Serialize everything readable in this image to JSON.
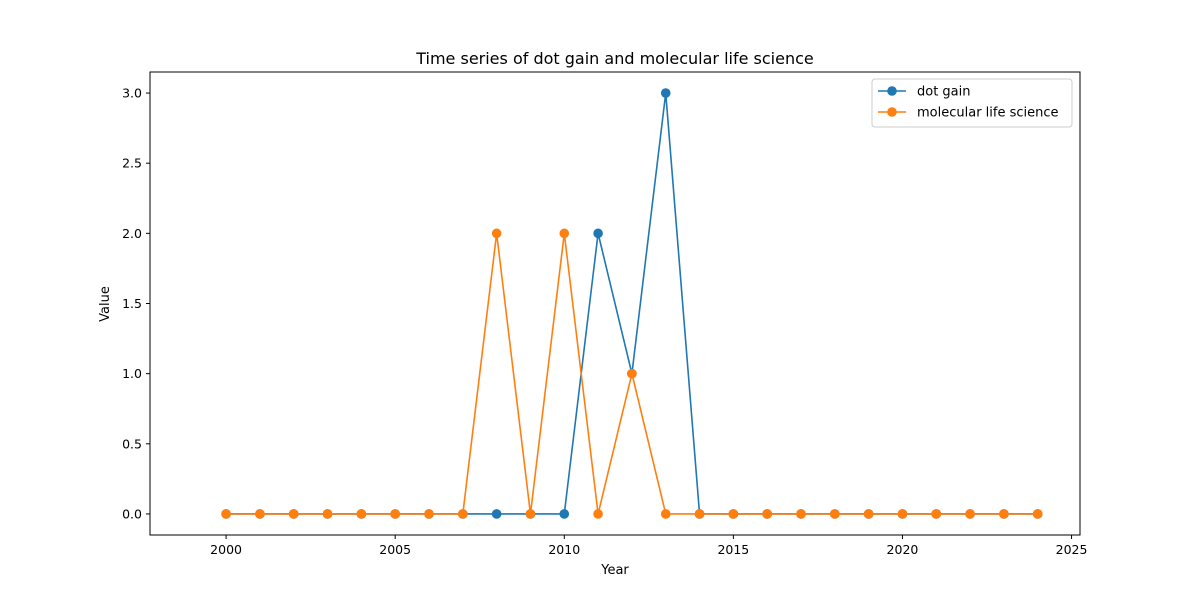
{
  "chart_data": {
    "type": "line",
    "title": "Time series of dot gain and molecular life science",
    "xlabel": "Year",
    "ylabel": "Value",
    "xlim": [
      1997.75,
      2025.25
    ],
    "ylim": [
      -0.15,
      3.15
    ],
    "xticks": [
      2000,
      2005,
      2010,
      2015,
      2020,
      2025
    ],
    "yticks": [
      0.0,
      0.5,
      1.0,
      1.5,
      2.0,
      2.5,
      3.0
    ],
    "xtick_labels": [
      "2000",
      "2005",
      "2010",
      "2015",
      "2020",
      "2025"
    ],
    "ytick_labels": [
      "0.0",
      "0.5",
      "1.0",
      "1.5",
      "2.0",
      "2.5",
      "3.0"
    ],
    "grid": false,
    "legend_position": "top-right",
    "x": [
      2000,
      2001,
      2002,
      2003,
      2004,
      2005,
      2006,
      2007,
      2008,
      2009,
      2010,
      2011,
      2012,
      2013,
      2014,
      2015,
      2016,
      2017,
      2018,
      2019,
      2020,
      2021,
      2022,
      2023,
      2024
    ],
    "series": [
      {
        "name": "dot gain",
        "color": "#1f77b4",
        "values": [
          0,
          0,
          0,
          0,
          0,
          0,
          0,
          0,
          0,
          0,
          0,
          2,
          1,
          3,
          0,
          0,
          0,
          0,
          0,
          0,
          0,
          0,
          0,
          0,
          0
        ]
      },
      {
        "name": "molecular life science",
        "color": "#ff7f0e",
        "values": [
          0,
          0,
          0,
          0,
          0,
          0,
          0,
          0,
          2,
          0,
          2,
          0,
          1,
          0,
          0,
          0,
          0,
          0,
          0,
          0,
          0,
          0,
          0,
          0,
          0
        ]
      }
    ]
  }
}
